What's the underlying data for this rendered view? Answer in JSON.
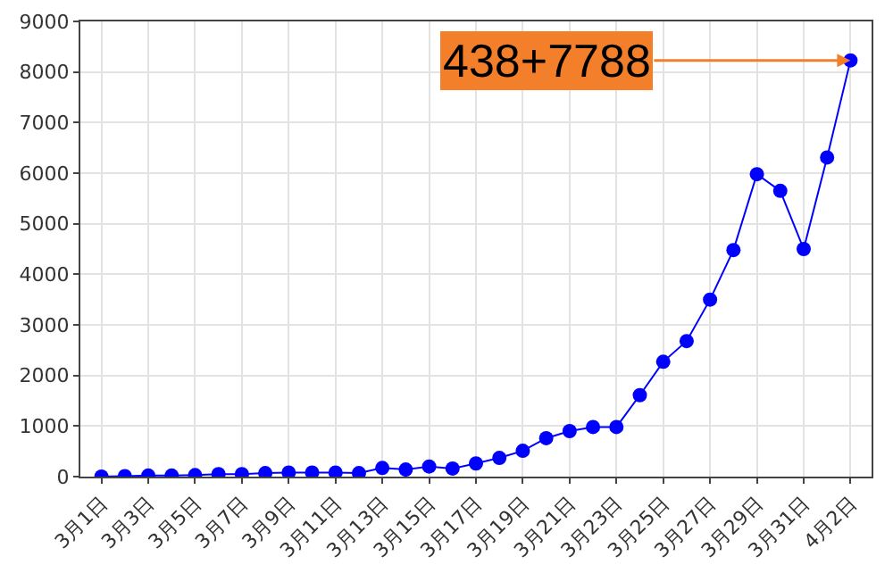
{
  "chart_data": {
    "type": "line",
    "categories": [
      "3月1日",
      null,
      "3月3日",
      null,
      "3月5日",
      null,
      "3月7日",
      null,
      "3月9日",
      null,
      "3月11日",
      null,
      "3月13日",
      null,
      "3月15日",
      null,
      "3月17日",
      null,
      "3月19日",
      null,
      "3月21日",
      null,
      "3月23日",
      null,
      "3月25日",
      null,
      "3月27日",
      null,
      "3月29日",
      null,
      "3月31日",
      null,
      "4月2日"
    ],
    "series": [
      {
        "color": "#0000ff",
        "values": [
          0,
          10,
          20,
          20,
          30,
          50,
          50,
          70,
          80,
          80,
          80,
          70,
          170,
          140,
          200,
          160,
          260,
          370,
          510,
          760,
          900,
          980,
          980,
          1610,
          2270,
          2680,
          3500,
          4480,
          5980,
          5650,
          4500,
          6310,
          8230
        ]
      }
    ],
    "ylim": [
      0,
      9000
    ],
    "yticks": [
      0,
      1000,
      2000,
      3000,
      4000,
      5000,
      6000,
      7000,
      8000,
      9000
    ],
    "grid": true,
    "marker": "circle",
    "line_style": "solid",
    "legend": false,
    "annotations": [
      {
        "text": "438+7788",
        "x": "4月2日",
        "y": 8230
      }
    ]
  }
}
